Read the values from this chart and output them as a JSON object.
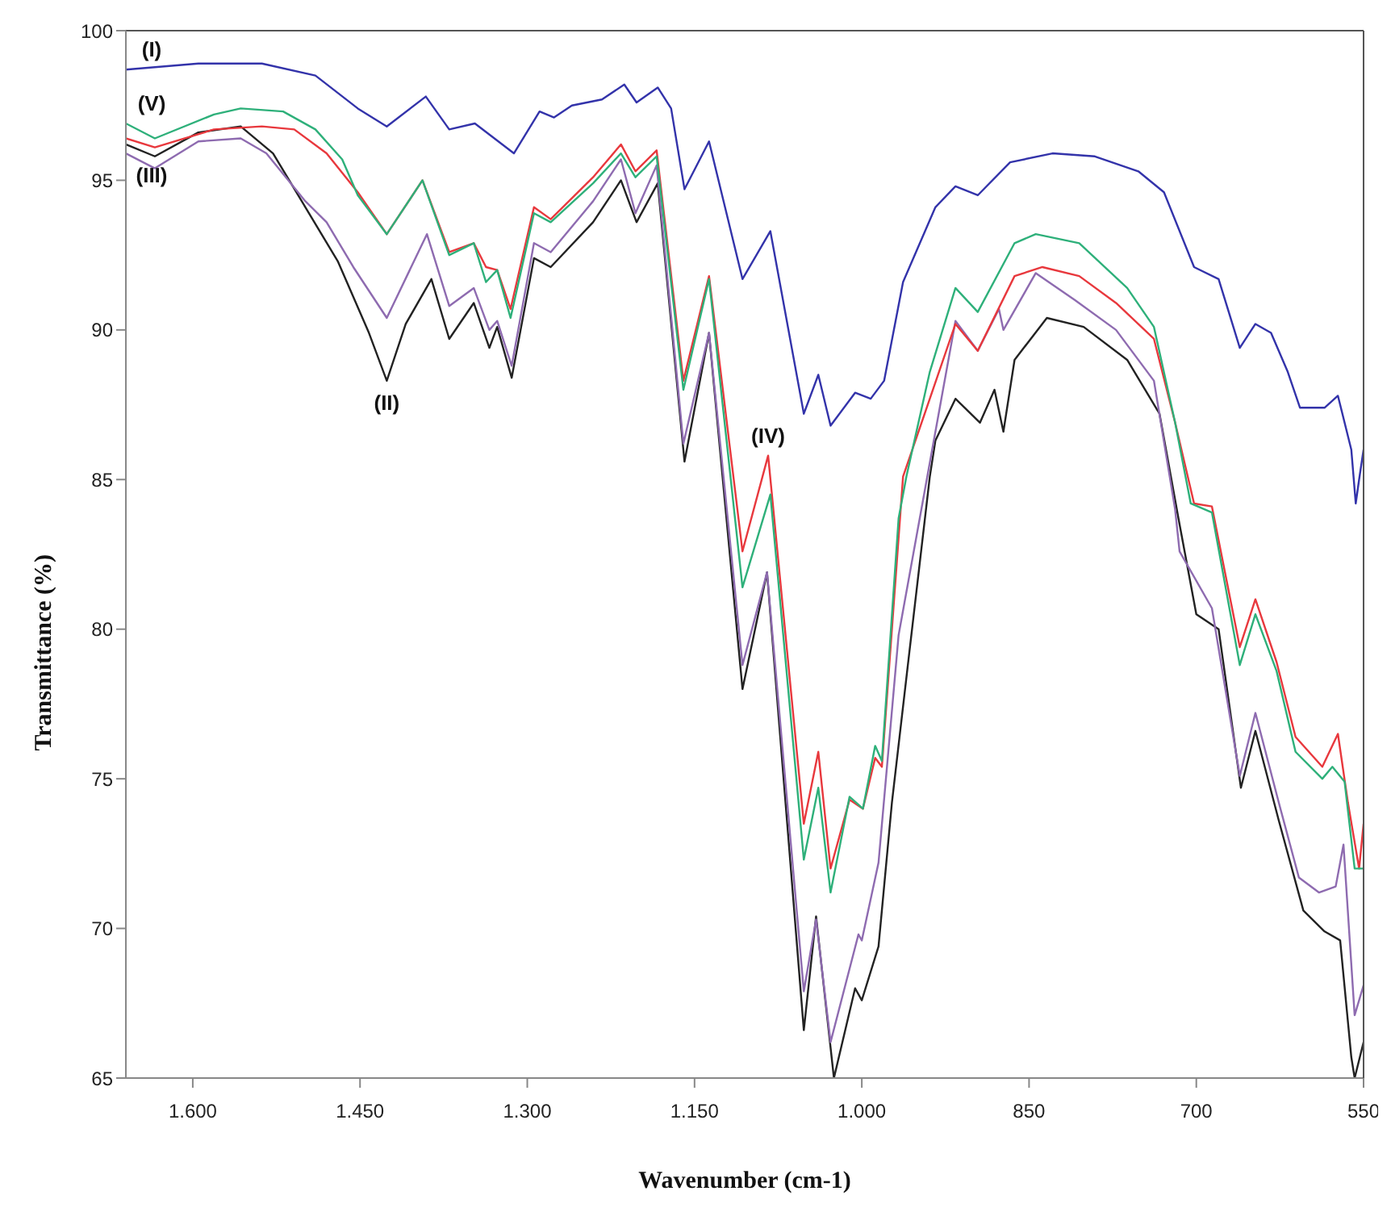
{
  "chart_data": {
    "type": "line",
    "xlabel": "Wavenumber (cm-1)",
    "ylabel": "Transmittance (%)",
    "xlim": [
      1660,
      550
    ],
    "xticks": [
      {
        "value": 1600,
        "label": "1.600"
      },
      {
        "value": 1450,
        "label": "1.450"
      },
      {
        "value": 1300,
        "label": "1.300"
      },
      {
        "value": 1150,
        "label": "1.150"
      },
      {
        "value": 1000,
        "label": "1.000"
      },
      850,
      700,
      550
    ],
    "ylim": [
      65,
      100
    ],
    "yticks": [
      65,
      70,
      75,
      80,
      85,
      90,
      95,
      100
    ],
    "annotations": [
      {
        "text": "(I)",
        "x": 1660,
        "y": 98.7
      },
      {
        "text": "(V)",
        "x": 1660,
        "y": 96.9
      },
      {
        "text": "(III)",
        "x": 1660,
        "y": 95.9
      },
      {
        "text": "(II)",
        "x": 1426,
        "y": 88.3
      },
      {
        "text": "(IV)",
        "x": 1084,
        "y": 85.8
      }
    ],
    "series": [
      {
        "color": "#3333aa",
        "x": [
          1660,
          1595,
          1538,
          1490,
          1452,
          1426,
          1391,
          1370,
          1347,
          1312,
          1289,
          1276,
          1260,
          1233,
          1213,
          1202,
          1183,
          1171,
          1159,
          1137,
          1107,
          1082,
          1052,
          1039,
          1028,
          1006,
          992,
          980,
          963,
          934,
          916,
          896,
          867,
          829,
          791,
          752,
          729,
          702,
          680,
          661,
          647,
          633,
          618,
          607,
          585,
          573,
          561,
          557,
          554,
          550
        ],
        "values": [
          98.7,
          98.9,
          98.9,
          98.5,
          97.4,
          96.8,
          97.8,
          96.7,
          96.9,
          95.9,
          97.3,
          97.1,
          97.5,
          97.7,
          98.2,
          97.6,
          98.1,
          97.4,
          94.7,
          96.3,
          91.7,
          93.3,
          87.2,
          88.5,
          86.8,
          87.9,
          87.7,
          88.3,
          91.6,
          94.1,
          94.8,
          94.5,
          95.6,
          95.9,
          95.8,
          95.3,
          94.6,
          92.1,
          91.7,
          89.4,
          90.2,
          89.9,
          88.6,
          87.4,
          87.4,
          87.8,
          86.0,
          84.2,
          85.0,
          86.0
        ]
      },
      {
        "color": "#222222",
        "x": [
          1660,
          1634,
          1595,
          1557,
          1528,
          1499,
          1470,
          1442,
          1426,
          1409,
          1386,
          1370,
          1348,
          1334,
          1327,
          1314,
          1294,
          1279,
          1241,
          1216,
          1202,
          1183,
          1159,
          1137,
          1107,
          1085,
          1052,
          1041,
          1025,
          1006,
          1000,
          985,
          973,
          959,
          939,
          934,
          916,
          894,
          881,
          873,
          863,
          834,
          801,
          762,
          733,
          716,
          700,
          680,
          660,
          647,
          626,
          604,
          585,
          571,
          561,
          558,
          550
        ],
        "values": [
          96.2,
          95.8,
          96.6,
          96.8,
          95.9,
          94.1,
          92.3,
          89.9,
          88.3,
          90.2,
          91.7,
          89.7,
          90.9,
          89.4,
          90.1,
          88.4,
          92.4,
          92.1,
          93.6,
          95.0,
          93.6,
          94.9,
          85.6,
          89.9,
          78.0,
          81.9,
          66.6,
          70.4,
          65.0,
          68.0,
          67.6,
          69.4,
          74.2,
          78.7,
          85.1,
          86.3,
          87.7,
          86.9,
          88.0,
          86.6,
          89.0,
          90.4,
          90.1,
          89.0,
          87.2,
          83.7,
          80.5,
          80.0,
          74.7,
          76.6,
          73.6,
          70.6,
          69.9,
          69.6,
          65.7,
          65.0,
          66.2
        ]
      },
      {
        "color": "#8e6bb0",
        "x": [
          1660,
          1634,
          1595,
          1557,
          1534,
          1499,
          1480,
          1456,
          1426,
          1390,
          1370,
          1348,
          1334,
          1327,
          1314,
          1294,
          1279,
          1241,
          1216,
          1203,
          1184,
          1160,
          1137,
          1107,
          1085,
          1052,
          1041,
          1028,
          1003,
          1000,
          985,
          967,
          916,
          896,
          877,
          873,
          844,
          809,
          772,
          738,
          719,
          715,
          686,
          661,
          647,
          626,
          608,
          590,
          575,
          568,
          558,
          550
        ],
        "values": [
          95.9,
          95.4,
          96.3,
          96.4,
          95.9,
          94.3,
          93.6,
          92.1,
          90.4,
          93.2,
          90.8,
          91.4,
          90.0,
          90.3,
          88.8,
          92.9,
          92.6,
          94.3,
          95.7,
          93.9,
          95.5,
          86.2,
          89.9,
          78.8,
          81.9,
          67.9,
          70.3,
          66.2,
          69.8,
          69.6,
          72.2,
          79.8,
          90.3,
          89.3,
          90.7,
          90.0,
          91.9,
          91.0,
          90.0,
          88.3,
          84.0,
          82.6,
          80.7,
          75.1,
          77.2,
          74.2,
          71.7,
          71.2,
          71.4,
          72.8,
          67.1,
          68.1
        ]
      },
      {
        "color": "#e8383d",
        "x": [
          1660,
          1634,
          1581,
          1538,
          1509,
          1480,
          1452,
          1426,
          1394,
          1370,
          1348,
          1337,
          1327,
          1315,
          1294,
          1279,
          1241,
          1216,
          1203,
          1184,
          1160,
          1137,
          1107,
          1084,
          1052,
          1039,
          1028,
          1011,
          999,
          988,
          982,
          963,
          939,
          916,
          896,
          863,
          838,
          805,
          772,
          738,
          719,
          702,
          686,
          661,
          647,
          628,
          611,
          587,
          573,
          564,
          554,
          550
        ],
        "values": [
          96.4,
          96.1,
          96.7,
          96.8,
          96.7,
          95.9,
          94.6,
          93.2,
          95.0,
          92.6,
          92.9,
          92.1,
          92.0,
          90.7,
          94.1,
          93.7,
          95.1,
          96.2,
          95.3,
          96.0,
          88.3,
          91.8,
          82.6,
          85.8,
          73.5,
          75.9,
          72.0,
          74.3,
          74.0,
          75.7,
          75.4,
          85.1,
          87.7,
          90.2,
          89.3,
          91.8,
          92.1,
          91.8,
          90.9,
          89.7,
          86.9,
          84.2,
          84.1,
          79.4,
          81.0,
          78.9,
          76.4,
          75.4,
          76.5,
          74.2,
          72.0,
          73.5
        ]
      },
      {
        "color": "#2eb07a",
        "x": [
          1660,
          1634,
          1581,
          1557,
          1519,
          1490,
          1466,
          1452,
          1426,
          1394,
          1370,
          1348,
          1337,
          1327,
          1315,
          1294,
          1279,
          1241,
          1216,
          1203,
          1184,
          1160,
          1137,
          1107,
          1082,
          1052,
          1039,
          1028,
          1011,
          999,
          988,
          982,
          967,
          960,
          939,
          916,
          896,
          863,
          844,
          805,
          762,
          738,
          719,
          705,
          686,
          661,
          647,
          628,
          611,
          587,
          578,
          567,
          558,
          550
        ],
        "values": [
          96.9,
          96.4,
          97.2,
          97.4,
          97.3,
          96.7,
          95.7,
          94.5,
          93.2,
          95.0,
          92.5,
          92.9,
          91.6,
          92.0,
          90.4,
          93.9,
          93.6,
          94.9,
          95.9,
          95.1,
          95.8,
          88.0,
          91.7,
          81.4,
          84.5,
          72.3,
          74.7,
          71.2,
          74.4,
          74.0,
          76.1,
          75.6,
          83.7,
          85.1,
          88.6,
          91.4,
          90.6,
          92.9,
          93.2,
          92.9,
          91.4,
          90.1,
          86.9,
          84.2,
          83.9,
          78.8,
          80.5,
          78.6,
          75.9,
          75.0,
          75.4,
          74.9,
          72.0,
          72.0
        ]
      }
    ]
  }
}
